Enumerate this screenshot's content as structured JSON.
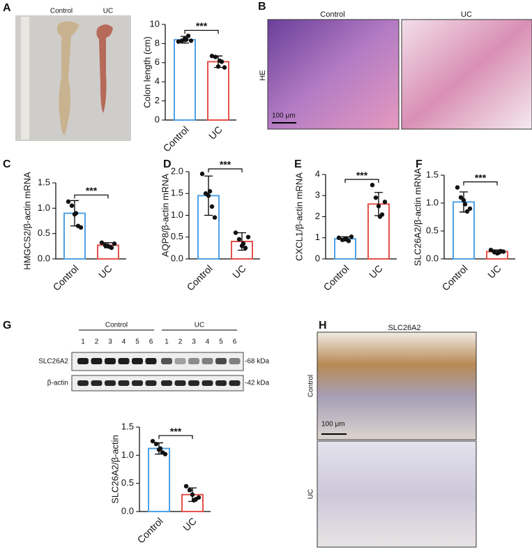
{
  "panel_labels": [
    "A",
    "B",
    "C",
    "D",
    "E",
    "F",
    "G",
    "H"
  ],
  "photo_a": {
    "labels": [
      "Control",
      "UC"
    ]
  },
  "histology_b": {
    "columns": [
      "Control",
      "UC"
    ],
    "stain": "HE",
    "scale": "100 μm"
  },
  "blot_g": {
    "groups": [
      "Control",
      "UC"
    ],
    "lanes": [
      "1",
      "2",
      "3",
      "4",
      "5",
      "6"
    ],
    "proteins": [
      "SLC26A2",
      "β-actin"
    ],
    "sizes": [
      "-68 kDa",
      "-42 kDa"
    ]
  },
  "ihc_h": {
    "title": "SLC26A2",
    "rows": [
      "Control",
      "UC"
    ],
    "scale": "100 μm"
  },
  "chart_data": [
    {
      "type": "bar",
      "ylabel": "Colon length (cm)",
      "categories": [
        "Control",
        "UC"
      ],
      "colors": [
        "#4ea1e6",
        "#e5504a"
      ],
      "values": [
        8.4,
        6.1
      ],
      "errors": [
        0.35,
        0.6
      ],
      "points": [
        [
          8.2,
          8.3,
          8.5,
          8.8,
          8.3,
          8.4
        ],
        [
          6.7,
          6.6,
          5.6,
          6.1,
          5.5,
          6.2
        ]
      ],
      "ylim": [
        0,
        10
      ],
      "yticks": [
        0,
        2,
        4,
        6,
        8,
        10
      ],
      "significance": "***"
    },
    {
      "type": "bar",
      "ylabel": "HMGCS2/β-actin mRNA",
      "categories": [
        "Control",
        "UC"
      ],
      "colors": [
        "#4ea1e6",
        "#e5504a"
      ],
      "values": [
        0.9,
        0.27
      ],
      "errors": [
        0.25,
        0.05
      ],
      "points": [
        [
          1.13,
          1.05,
          0.88,
          0.65,
          0.62,
          0.9
        ],
        [
          0.32,
          0.27,
          0.25,
          0.22,
          0.3,
          0.24
        ]
      ],
      "ylim": [
        0,
        1.5
      ],
      "yticks": [
        {
          "value": 0,
          "label": "0.0"
        },
        {
          "value": 0.5,
          "label": "0.5"
        },
        {
          "value": 1,
          "label": "1.0"
        },
        {
          "value": 1.5,
          "label": "1.5"
        }
      ],
      "significance": "***"
    },
    {
      "type": "bar",
      "ylabel": "AQP8/β-actin mRNA",
      "categories": [
        "Control",
        "UC"
      ],
      "colors": [
        "#4ea1e6",
        "#e5504a"
      ],
      "values": [
        1.45,
        0.4
      ],
      "errors": [
        0.45,
        0.2
      ],
      "points": [
        [
          1.95,
          1.5,
          1.45,
          1.2,
          0.95,
          1.55
        ],
        [
          0.6,
          0.45,
          0.3,
          0.25,
          0.5,
          0.35
        ]
      ],
      "ylim": [
        0,
        2
      ],
      "yticks": [
        {
          "value": 0,
          "label": "0.0"
        },
        {
          "value": 0.5,
          "label": "0.5"
        },
        {
          "value": 1,
          "label": "1.0"
        },
        {
          "value": 1.5,
          "label": "1.5"
        },
        {
          "value": 2,
          "label": "2.0"
        }
      ],
      "significance": "***"
    },
    {
      "type": "bar",
      "ylabel": "CXCL1/β-actin mRNA",
      "categories": [
        "Control",
        "UC"
      ],
      "colors": [
        "#4ea1e6",
        "#e5504a"
      ],
      "values": [
        0.95,
        2.6
      ],
      "errors": [
        0.1,
        0.55
      ],
      "points": [
        [
          1.0,
          0.9,
          0.95,
          0.85,
          1.05,
          0.95
        ],
        [
          3.5,
          2.9,
          2.5,
          2.1,
          2.7,
          2.0
        ]
      ],
      "ylim": [
        0,
        4
      ],
      "yticks": [
        0,
        1,
        2,
        3,
        4
      ],
      "significance": "***"
    },
    {
      "type": "bar",
      "ylabel": "SLC26A2/β-actin mRNA",
      "categories": [
        "Control",
        "UC"
      ],
      "colors": [
        "#4ea1e6",
        "#e5504a"
      ],
      "values": [
        1.02,
        0.13
      ],
      "errors": [
        0.18,
        0.03
      ],
      "points": [
        [
          1.28,
          1.1,
          1.05,
          0.85,
          0.9,
          0.98
        ],
        [
          0.16,
          0.12,
          0.1,
          0.14,
          0.13,
          0.11
        ]
      ],
      "ylim": [
        0,
        1.5
      ],
      "yticks": [
        {
          "value": 0,
          "label": "0.0"
        },
        {
          "value": 0.5,
          "label": "0.5"
        },
        {
          "value": 1,
          "label": "1.0"
        },
        {
          "value": 1.5,
          "label": "1.5"
        }
      ],
      "significance": "***"
    },
    {
      "type": "bar",
      "ylabel": "SLC26A2/β-actin",
      "categories": [
        "Control",
        "UC"
      ],
      "colors": [
        "#4ea1e6",
        "#e5504a"
      ],
      "values": [
        1.12,
        0.3
      ],
      "errors": [
        0.1,
        0.12
      ],
      "points": [
        [
          1.25,
          1.2,
          1.1,
          1.05,
          1.02,
          1.12
        ],
        [
          0.45,
          0.38,
          0.3,
          0.22,
          0.25,
          0.2
        ]
      ],
      "ylim": [
        0,
        1.5
      ],
      "yticks": [
        {
          "value": 0,
          "label": "0.0"
        },
        {
          "value": 0.5,
          "label": "0.5"
        },
        {
          "value": 1,
          "label": "1.0"
        },
        {
          "value": 1.5,
          "label": "1.5"
        }
      ],
      "significance": "***"
    }
  ]
}
